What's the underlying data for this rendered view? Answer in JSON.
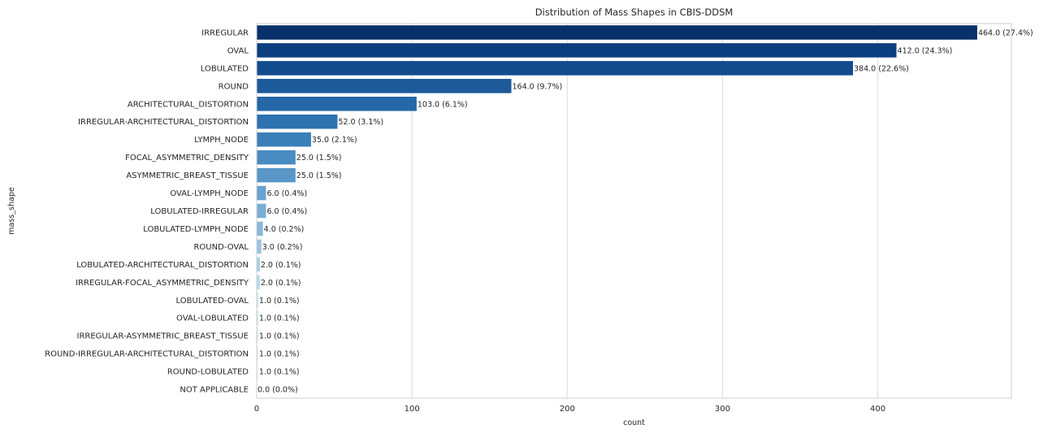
{
  "chart_data": {
    "type": "bar",
    "orientation": "horizontal",
    "title": "Distribution of Mass Shapes in CBIS-DDSM",
    "xlabel": "count",
    "ylabel": "mass_shape",
    "xlim": [
      0,
      486
    ],
    "xticks": [
      0,
      100,
      200,
      300,
      400
    ],
    "grid": true,
    "categories": [
      "IRREGULAR",
      "OVAL",
      "LOBULATED",
      "ROUND",
      "ARCHITECTURAL_DISTORTION",
      "IRREGULAR-ARCHITECTURAL_DISTORTION",
      "LYMPH_NODE",
      "FOCAL_ASYMMETRIC_DENSITY",
      "ASYMMETRIC_BREAST_TISSUE",
      "OVAL-LYMPH_NODE",
      "LOBULATED-IRREGULAR",
      "LOBULATED-LYMPH_NODE",
      "ROUND-OVAL",
      "LOBULATED-ARCHITECTURAL_DISTORTION",
      "IRREGULAR-FOCAL_ASYMMETRIC_DENSITY",
      "LOBULATED-OVAL",
      "OVAL-LOBULATED",
      "IRREGULAR-ASYMMETRIC_BREAST_TISSUE",
      "ROUND-IRREGULAR-ARCHITECTURAL_DISTORTION",
      "ROUND-LOBULATED",
      "NOT APPLICABLE"
    ],
    "values": [
      464,
      412,
      384,
      164,
      103,
      52,
      35,
      25,
      25,
      6,
      6,
      4,
      3,
      2,
      2,
      1,
      1,
      1,
      1,
      1,
      0
    ],
    "data_labels": [
      "464.0 (27.4%)",
      "412.0 (24.3%)",
      "384.0 (22.6%)",
      "164.0 (9.7%)",
      "103.0 (6.1%)",
      "52.0 (3.1%)",
      "35.0 (2.1%)",
      "25.0 (1.5%)",
      "25.0 (1.5%)",
      "6.0 (0.4%)",
      "6.0 (0.4%)",
      "4.0 (0.2%)",
      "3.0 (0.2%)",
      "2.0 (0.1%)",
      "2.0 (0.1%)",
      "1.0 (0.1%)",
      "1.0 (0.1%)",
      "1.0 (0.1%)",
      "1.0 (0.1%)",
      "1.0 (0.1%)",
      "0.0 (0.0%)"
    ],
    "colors": [
      "#08306b",
      "#0c3f7f",
      "#124c8d",
      "#1c5a9a",
      "#2567a7",
      "#2e72b0",
      "#3b7fb9",
      "#4a8bc2",
      "#5897c8",
      "#68a3cf",
      "#78aed5",
      "#88badb",
      "#98c5e1",
      "#a7cfe6",
      "#b5d8eb",
      "#c2e0ef",
      "#cde6f2",
      "#d6ebf5",
      "#dfeff7",
      "#e6f3f9",
      "#edf6fb"
    ]
  }
}
